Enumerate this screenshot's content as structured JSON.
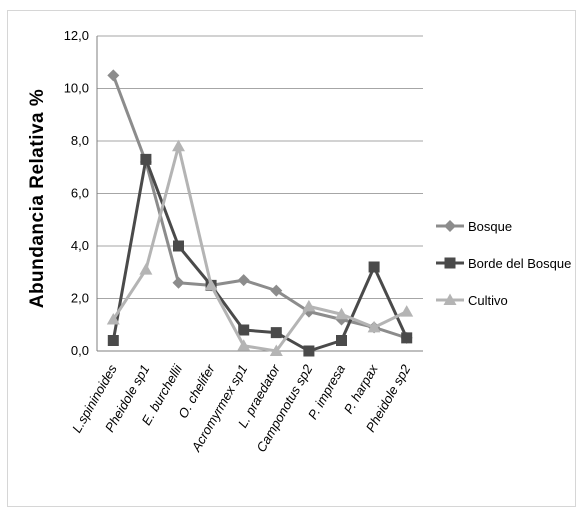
{
  "chart_data": {
    "type": "line",
    "title": "",
    "xlabel": "",
    "ylabel": "Abundancia Relativa %",
    "ylim": [
      0,
      12
    ],
    "yticks": [
      "0,0",
      "2,0",
      "4,0",
      "6,0",
      "8,0",
      "10,0",
      "12,0"
    ],
    "ytick_values": [
      0,
      2,
      4,
      6,
      8,
      10,
      12
    ],
    "grid": "horizontal",
    "legend_position": "right",
    "categories": [
      "L.spininoides",
      "Pheidole sp1",
      "E. burchellii",
      "O. chelifer",
      "Acromyrmex sp1",
      "L. praedator",
      "Camponotus sp2",
      "P. impresa",
      "P. harpax",
      "Pheidole sp2"
    ],
    "series": [
      {
        "name": "Bosque",
        "marker": "diamond",
        "color": "#8c8c8c",
        "values": [
          10.5,
          7.2,
          2.6,
          2.5,
          2.7,
          2.3,
          1.5,
          1.2,
          0.9,
          0.5
        ]
      },
      {
        "name": "Borde del Bosque",
        "marker": "square",
        "color": "#4a4a4a",
        "values": [
          0.4,
          7.3,
          4.0,
          2.5,
          0.8,
          0.7,
          0.0,
          0.4,
          3.2,
          0.5
        ]
      },
      {
        "name": "Cultivo",
        "marker": "triangle",
        "color": "#b4b4b4",
        "values": [
          1.2,
          3.1,
          7.8,
          2.5,
          0.2,
          0.0,
          1.7,
          1.4,
          0.9,
          1.5
        ]
      }
    ]
  }
}
